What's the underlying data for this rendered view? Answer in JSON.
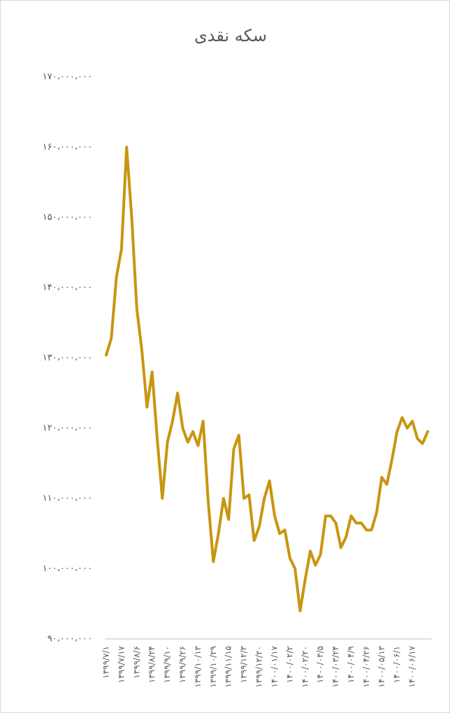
{
  "chart_data": {
    "type": "line",
    "title": "سکه نقدی",
    "categories": [
      "۱۳۹۹/۷/۱",
      null,
      null,
      "۱۳۹۹/۷/۱۷",
      null,
      null,
      "۱۳۹۹/۸/۶",
      null,
      null,
      "۱۳۹۹/۸/۲۴",
      null,
      null,
      "۱۳۹۹/۹/۱۰",
      null,
      null,
      "۱۳۹۹/۹/۲۶",
      null,
      null,
      "۱۳۹۹/۱۰/۱۳",
      null,
      null,
      "۱۳۹۹/۱۰/۲۹",
      null,
      null,
      "۱۳۹۹/۱۱/۱۵",
      null,
      null,
      "۱۳۹۹/۱۲/۳",
      null,
      null,
      "۱۳۹۹/۱۲/۲۰",
      null,
      null,
      "۱۴۰۰/۰۱/۱۷",
      null,
      null,
      "۱۴۰۰/۰۲/۲",
      null,
      null,
      "۱۴۰۰/۰۲/۲۰",
      null,
      null,
      "۱۴۰۰/۰۳/۵",
      null,
      null,
      "۱۴۰۰/۰۳/۲۴",
      null,
      null,
      "۱۴۰۰/۰۴/۹",
      null,
      null,
      "۱۴۰۰/۰۴/۲۶",
      null,
      null,
      "۱۴۰۰/۰۵/۱۳",
      null,
      null,
      "۱۴۰۰/۰۶/۱",
      null,
      null,
      "۱۴۰۰/۰۶/۱۷",
      null,
      null,
      null
    ],
    "values": [
      130400000,
      132800000,
      141500000,
      145500000,
      160000000,
      150000000,
      137000000,
      131000000,
      123000000,
      128000000,
      118500000,
      110000000,
      118000000,
      121000000,
      125000000,
      120000000,
      118000000,
      119500000,
      117500000,
      121000000,
      109500000,
      101000000,
      105000000,
      110000000,
      107000000,
      117000000,
      119000000,
      110000000,
      110500000,
      104000000,
      106000000,
      110000000,
      112500000,
      107500000,
      105000000,
      105500000,
      101500000,
      100000000,
      94000000,
      98500000,
      102500000,
      100500000,
      102000000,
      107500000,
      107500000,
      106500000,
      103000000,
      104500000,
      107500000,
      106500000,
      106500000,
      105500000,
      105500000,
      108000000,
      113000000,
      112000000,
      115500000,
      119500000,
      121500000,
      120000000,
      121000000,
      118500000,
      117800000,
      119500000
    ],
    "color": "#c8960f",
    "ylim": [
      90000000,
      170000000
    ],
    "yticks": [
      {
        "value": 90000000,
        "label": "۹۰،۰۰۰،۰۰۰"
      },
      {
        "value": 100000000,
        "label": "۱۰۰،۰۰۰،۰۰۰"
      },
      {
        "value": 110000000,
        "label": "۱۱۰،۰۰۰،۰۰۰"
      },
      {
        "value": 120000000,
        "label": "۱۲۰،۰۰۰،۰۰۰"
      },
      {
        "value": 130000000,
        "label": "۱۳۰،۰۰۰،۰۰۰"
      },
      {
        "value": 140000000,
        "label": "۱۴۰،۰۰۰،۰۰۰"
      },
      {
        "value": 150000000,
        "label": "۱۵۰،۰۰۰،۰۰۰"
      },
      {
        "value": 160000000,
        "label": "۱۶۰،۰۰۰،۰۰۰"
      },
      {
        "value": 170000000,
        "label": "۱۷۰،۰۰۰،۰۰۰"
      }
    ],
    "grid": false
  }
}
